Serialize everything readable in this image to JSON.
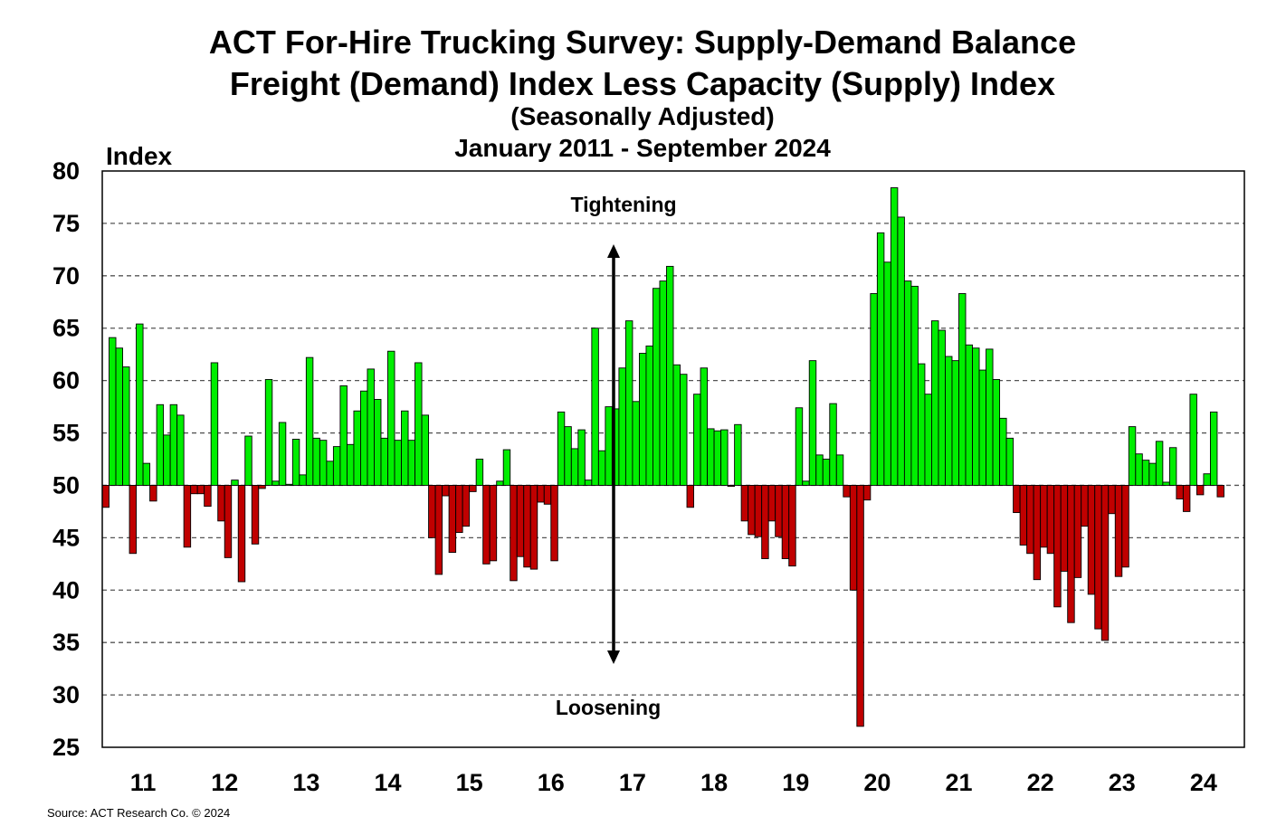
{
  "chart_data": {
    "type": "bar",
    "title": "ACT For-Hire Trucking Survey: Supply-Demand Balance",
    "subtitle": "Freight (Demand) Index Less Capacity (Supply) Index",
    "subtitle2": "(Seasonally Adjusted)",
    "period": "January 2011 - September 2024",
    "ylabel": "Index",
    "xlabel": "",
    "ylim": [
      25,
      80
    ],
    "yticks": [
      "80",
      "75",
      "70",
      "65",
      "60",
      "55",
      "50",
      "45",
      "40",
      "35",
      "30",
      "25"
    ],
    "xticks": [
      "11",
      "12",
      "13",
      "14",
      "15",
      "16",
      "17",
      "18",
      "19",
      "20",
      "21",
      "22",
      "23",
      "24"
    ],
    "baseline": 50,
    "grid": true,
    "start": "January 2011",
    "end": "September 2024",
    "frequency": "monthly",
    "colors": {
      "above": "#00ee00",
      "below": "#c00000"
    },
    "annotations": {
      "up": "Tightening",
      "down": "Loosening"
    },
    "values": [
      47.9,
      64.1,
      63.1,
      61.3,
      43.5,
      65.4,
      52.1,
      48.5,
      57.7,
      54.8,
      57.7,
      56.7,
      44.1,
      49.2,
      49.2,
      48.0,
      61.7,
      46.6,
      43.1,
      50.5,
      40.8,
      54.7,
      44.4,
      49.7,
      60.1,
      50.4,
      56.0,
      50.1,
      54.4,
      51.0,
      62.2,
      54.5,
      54.3,
      52.3,
      53.7,
      59.5,
      53.9,
      57.1,
      59.0,
      61.1,
      58.2,
      54.5,
      62.8,
      54.3,
      57.1,
      54.3,
      61.7,
      56.7,
      45.0,
      41.5,
      49.0,
      43.6,
      45.5,
      46.1,
      49.4,
      52.5,
      42.5,
      42.8,
      50.4,
      53.4,
      40.9,
      43.2,
      42.2,
      42.0,
      48.4,
      48.2,
      42.8,
      57.0,
      55.6,
      53.5,
      55.3,
      50.5,
      65.0,
      53.3,
      57.5,
      57.3,
      61.2,
      65.7,
      58.0,
      62.6,
      63.3,
      68.8,
      69.5,
      70.9,
      61.5,
      60.6,
      47.9,
      58.7,
      61.2,
      55.4,
      55.2,
      55.3,
      49.9,
      55.8,
      46.6,
      45.3,
      45.1,
      43.0,
      46.6,
      45.1,
      43.0,
      42.3,
      57.4,
      50.4,
      61.9,
      52.9,
      52.5,
      57.8,
      52.9,
      48.9,
      40.0,
      27.0,
      48.6,
      68.3,
      74.1,
      71.3,
      78.4,
      75.6,
      69.5,
      69.0,
      61.6,
      58.7,
      65.7,
      64.8,
      62.3,
      61.9,
      68.3,
      63.4,
      63.1,
      61.0,
      63.0,
      60.1,
      56.4,
      54.5,
      47.4,
      44.3,
      43.5,
      41.0,
      44.1,
      43.5,
      38.4,
      41.8,
      36.9,
      41.2,
      46.1,
      39.6,
      36.3,
      35.2,
      47.3,
      41.3,
      42.2,
      55.6,
      53.0,
      52.4,
      52.1,
      54.2,
      50.3,
      53.6,
      48.7,
      47.5,
      58.7,
      49.1,
      51.1,
      57.0,
      48.9
    ]
  },
  "source": "Source: ACT Research Co. © 2024"
}
